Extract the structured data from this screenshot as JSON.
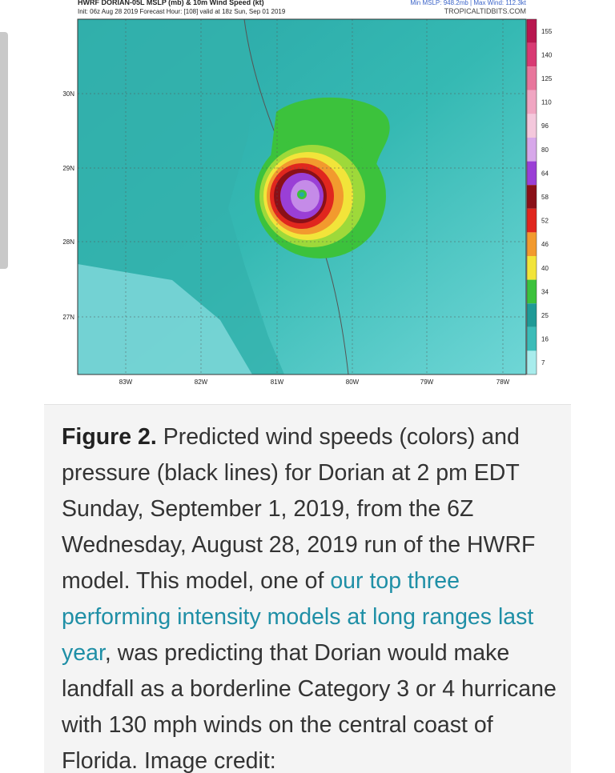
{
  "map": {
    "title": "HWRF DORIAN-05L MSLP (mb) & 10m Wind Speed (kt)",
    "init": "Init: 06z Aug 28 2019   Forecast Hour: [108]   valid at 18z Sun, Sep 01 2019",
    "stats": "Min MSLP: 948.2mb | Max Wind: 112.3kt",
    "source": "TROPICALTIDBITS.COM",
    "lat_labels": [
      "30N",
      "29N",
      "28N",
      "27N"
    ],
    "lon_labels": [
      "83W",
      "82W",
      "81W",
      "80W",
      "79W",
      "78W"
    ],
    "colorbar_labels": [
      155,
      140,
      125,
      110,
      96,
      80,
      64,
      58,
      52,
      46,
      40,
      34,
      25,
      16,
      7
    ]
  },
  "caption": {
    "label": "Figure 2.",
    "text_1": " Predicted wind speeds (colors) and pressure (black lines) for Dorian at 2 pm EDT Sunday, September 1, 2019, from the 6Z Wednesday, August 28, 2019 run of the HWRF model. This model, one of ",
    "link": "our top three performing intensity models at long ranges last year",
    "text_2": ", was predicting that Dorian would make landfall as a borderline Category 3 or 4 hurricane with 130 mph winds on the central coast of Florida. Image credit:"
  }
}
